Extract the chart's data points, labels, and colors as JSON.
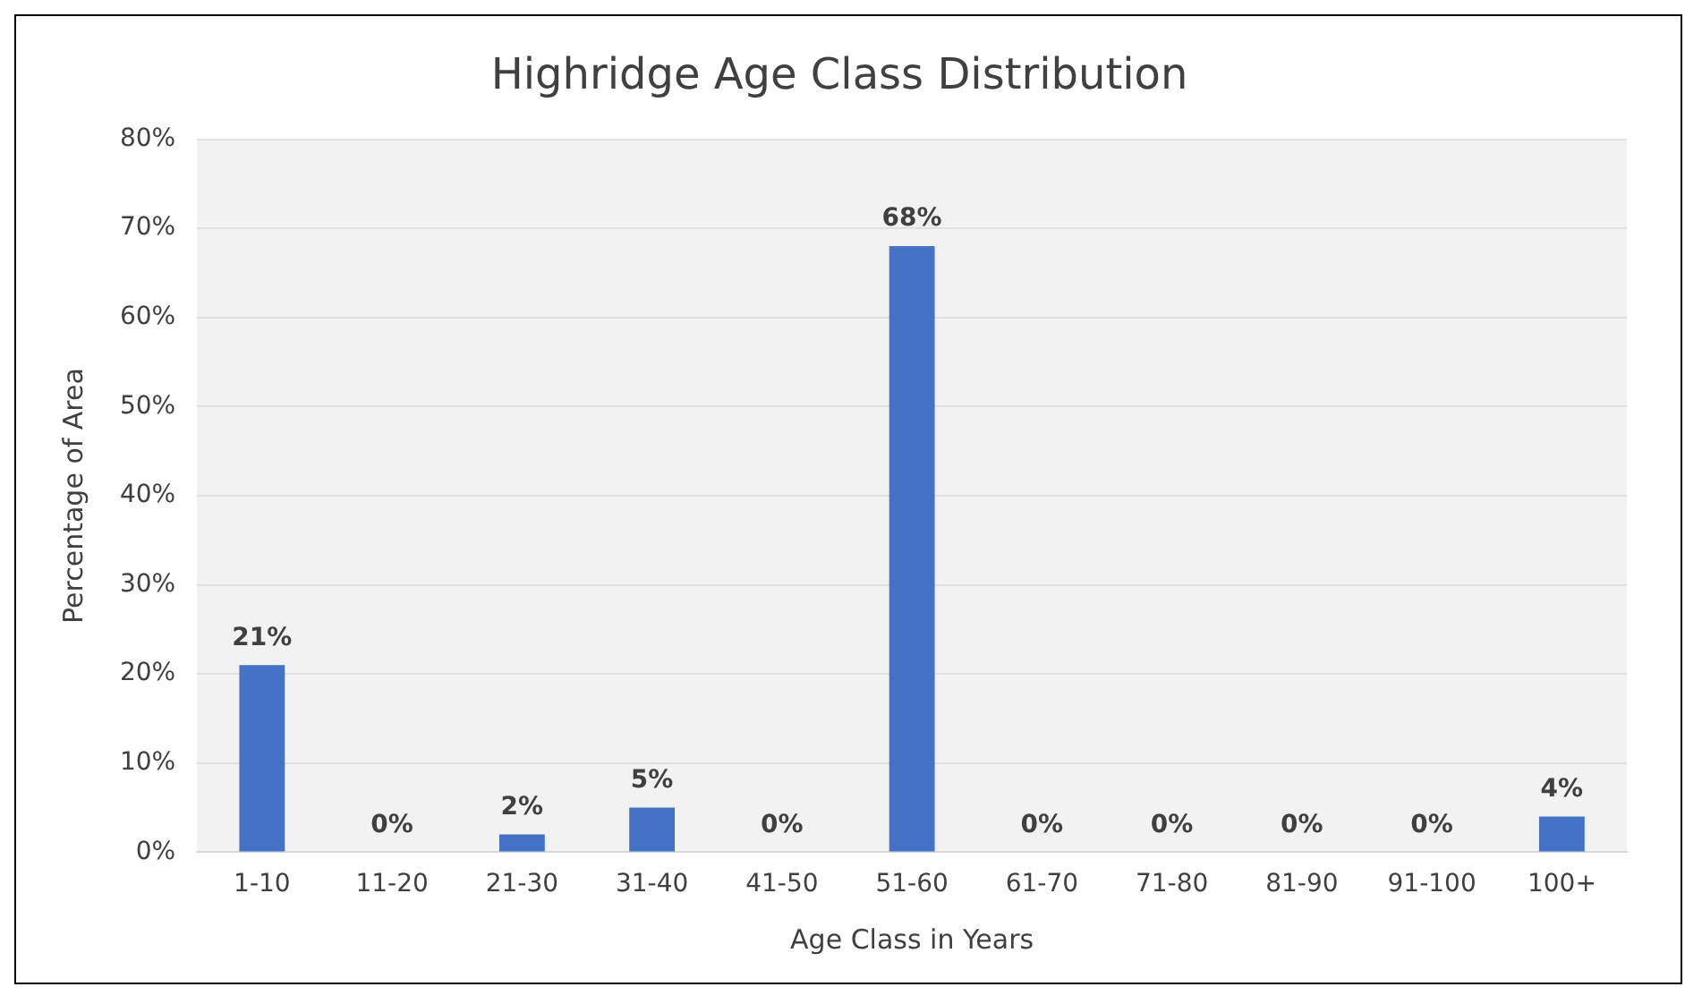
{
  "chart_data": {
    "type": "bar",
    "title": "Highridge Age Class Distribution",
    "xlabel": "Age Class in Years",
    "ylabel": "Percentage of Area",
    "categories": [
      "1-10",
      "11-20",
      "21-30",
      "31-40",
      "41-50",
      "51-60",
      "61-70",
      "71-80",
      "81-90",
      "91-100",
      "100+"
    ],
    "values": [
      21,
      0,
      2,
      5,
      0,
      68,
      0,
      0,
      0,
      0,
      4
    ],
    "color": "#4472c4",
    "value_labels": [
      "21%",
      "0%",
      "2%",
      "5%",
      "0%",
      "68%",
      "0%",
      "0%",
      "0%",
      "0%",
      "4%"
    ],
    "ylim": [
      0,
      80
    ],
    "yticks": [
      {
        "value": 0,
        "label": "0%"
      },
      {
        "value": 10,
        "label": "10%"
      },
      {
        "value": 20,
        "label": "20%"
      },
      {
        "value": 30,
        "label": "30%"
      },
      {
        "value": 40,
        "label": "40%"
      },
      {
        "value": 50,
        "label": "50%"
      },
      {
        "value": 60,
        "label": "60%"
      },
      {
        "value": 70,
        "label": "70%"
      },
      {
        "value": 80,
        "label": "80%"
      }
    ],
    "grid": "y",
    "legend": false
  }
}
